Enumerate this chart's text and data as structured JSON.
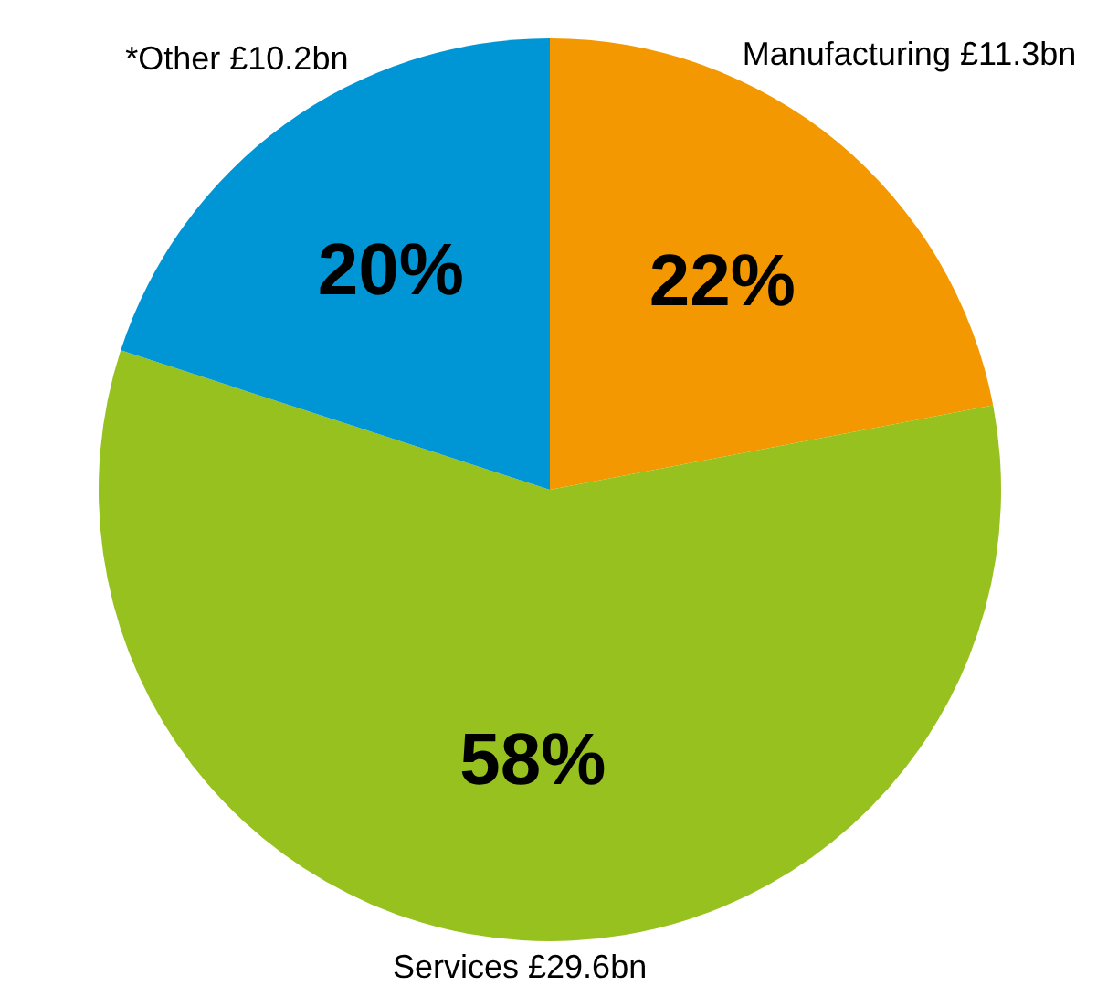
{
  "chart_data": {
    "type": "pie",
    "categories": [
      "Manufacturing £11.3bn",
      "Services £29.6bn",
      "*Other £10.2bn"
    ],
    "values": [
      22,
      58,
      20
    ],
    "value_labels": [
      "22%",
      "58%",
      "20%"
    ],
    "colors": [
      "#f39800",
      "#96c11f",
      "#0096d6"
    ]
  }
}
